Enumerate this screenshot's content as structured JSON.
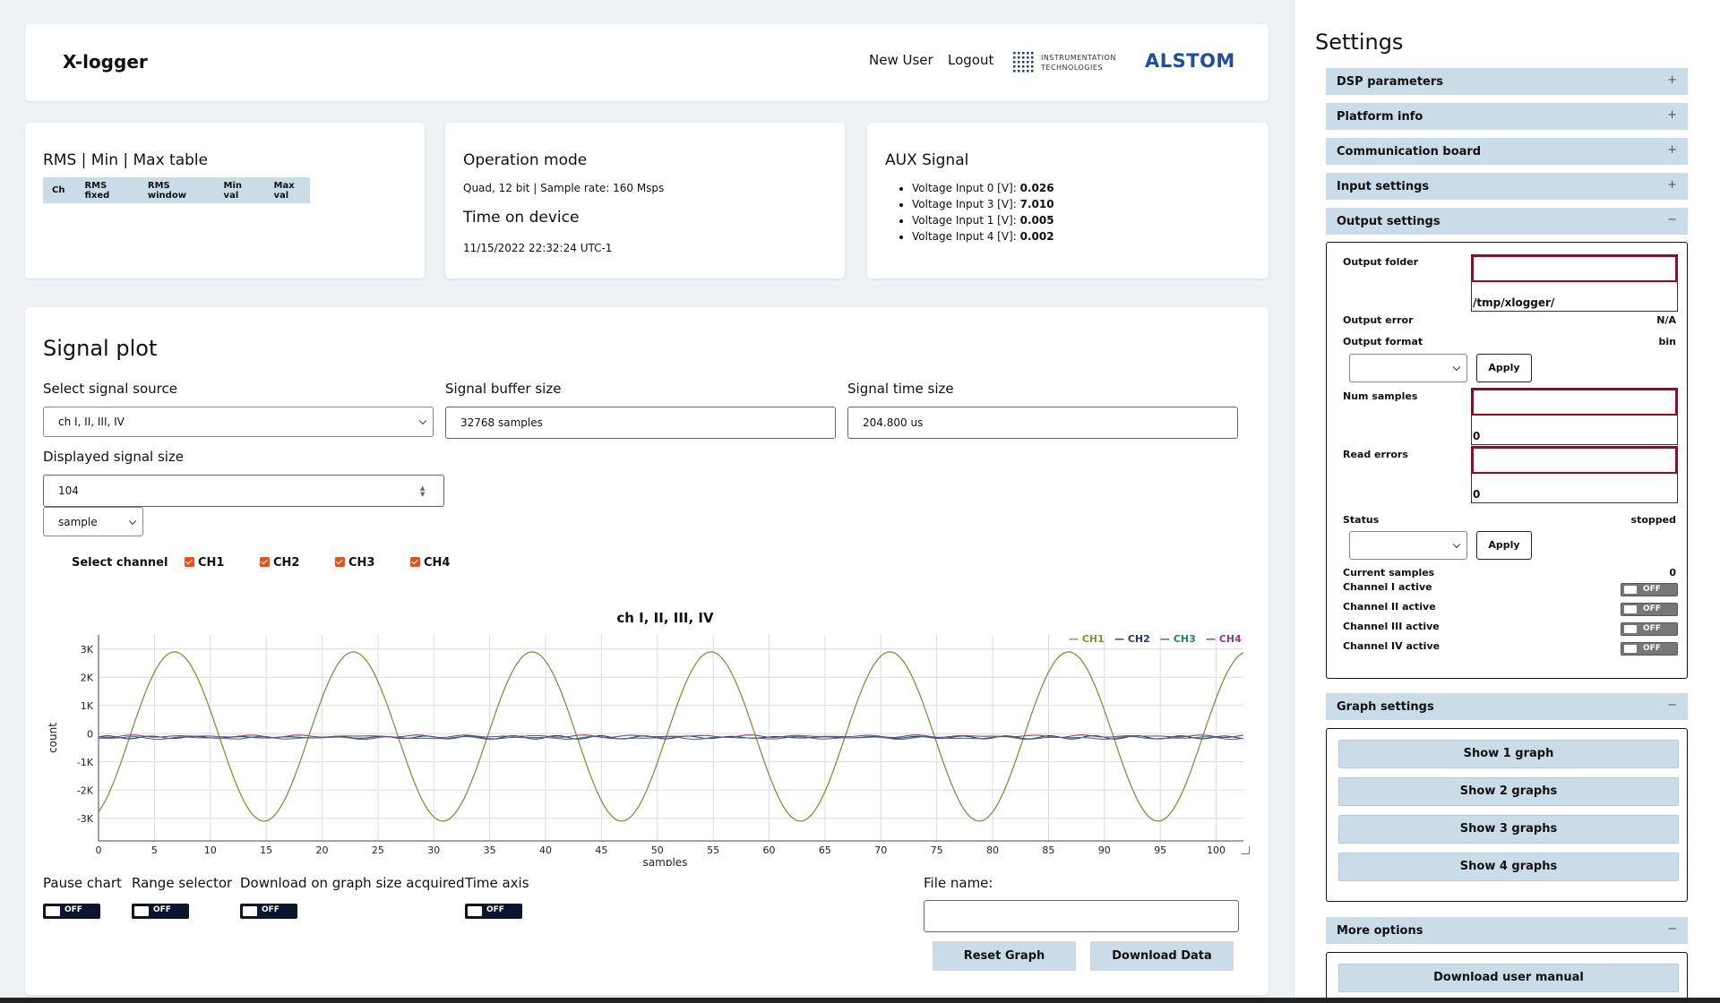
{
  "header": {
    "app_title": "X-logger",
    "new_user": "New User",
    "logout": "Logout",
    "instr_logo_line1": "INSTRUMENTATION",
    "instr_logo_line2": "TECHNOLOGIES",
    "alstom_logo": "ALSTOM"
  },
  "rms_card": {
    "title": "RMS | Min | Max table",
    "columns": [
      "Ch",
      "RMS fixed",
      "RMS window",
      "Min val",
      "Max val"
    ]
  },
  "operation_card": {
    "title": "Operation mode",
    "mode": "Quad, 12 bit | Sample rate: 160 Msps",
    "time_title": "Time on device",
    "time_value": "11/15/2022 22:32:24 UTC-1"
  },
  "aux_card": {
    "title": "AUX Signal",
    "items": [
      {
        "label": "Voltage Input 0 [V]:",
        "value": "0.026"
      },
      {
        "label": "Voltage Input 3 [V]:",
        "value": "7.010"
      },
      {
        "label": "Voltage Input 1 [V]:",
        "value": "0.005"
      },
      {
        "label": "Voltage Input 4 [V]:",
        "value": "0.002"
      }
    ]
  },
  "signal_plot": {
    "title": "Signal plot",
    "source_label": "Select signal source",
    "source_value": "ch I, II, III, IV",
    "buffer_label": "Signal buffer size",
    "buffer_value": "32768 samples",
    "time_label": "Signal time size",
    "time_value": "204.800 us",
    "displayed_label": "Displayed signal size",
    "displayed_value": "104",
    "unit_value": "sample",
    "select_channel_label": "Select channel",
    "channels": [
      "CH1",
      "CH2",
      "CH3",
      "CH4"
    ],
    "pause_label": "Pause chart",
    "range_label": "Range selector",
    "download_on_size_label": "Download on graph size acquired",
    "time_axis_label": "Time axis",
    "toggle_off": "OFF",
    "file_name_label": "File name:",
    "file_name_value": "",
    "reset_button": "Reset Graph",
    "download_button": "Download Data"
  },
  "chart_data": {
    "type": "line",
    "title": "ch I, II, III, IV",
    "xlabel": "samples",
    "ylabel": "count",
    "xlim": [
      0,
      103
    ],
    "ylim": [
      -3800,
      3500
    ],
    "x_ticks": [
      0,
      5,
      10,
      15,
      20,
      25,
      30,
      35,
      40,
      45,
      50,
      55,
      60,
      65,
      70,
      75,
      80,
      85,
      90,
      95,
      100
    ],
    "y_ticks": [
      {
        "value": 3000,
        "label": "3K"
      },
      {
        "value": 2000,
        "label": "2K"
      },
      {
        "value": 1000,
        "label": "1K"
      },
      {
        "value": 0,
        "label": "0"
      },
      {
        "value": -1000,
        "label": "-1K"
      },
      {
        "value": -2000,
        "label": "-2K"
      },
      {
        "value": -3000,
        "label": "-3K"
      }
    ],
    "grid": true,
    "legend_position": "top-right",
    "series": [
      {
        "name": "CH1",
        "color": "#8a8f3c",
        "amplitude": 3000,
        "period": 16,
        "phase_zero_x": 2.8,
        "offset": -100
      },
      {
        "name": "CH2",
        "color": "#1f3f6e",
        "amplitude": 40,
        "period": 4,
        "phase_zero_x": 0,
        "offset": -130
      },
      {
        "name": "CH3",
        "color": "#2e7e6e",
        "amplitude": 30,
        "period": 6,
        "phase_zero_x": 1,
        "offset": -150
      },
      {
        "name": "CH4",
        "color": "#8e3a8e",
        "amplitude": 25,
        "period": 5,
        "phase_zero_x": 2,
        "offset": -90
      }
    ]
  },
  "settings": {
    "title": "Settings",
    "sections": {
      "dsp": "DSP parameters",
      "platform": "Platform info",
      "comm": "Communication board",
      "input": "Input settings",
      "output": "Output settings",
      "graph": "Graph settings",
      "more": "More options"
    },
    "plus": "+",
    "minus": "−",
    "output": {
      "folder_label": "Output folder",
      "folder_value": "/tmp/xlogger/",
      "error_label": "Output error",
      "error_value": "N/A",
      "format_label": "Output format",
      "format_value": "bin",
      "apply": "Apply",
      "num_samples_label": "Num samples",
      "num_samples_value": "0",
      "read_errors_label": "Read errors",
      "read_errors_value": "0",
      "status_label": "Status",
      "status_value": "stopped",
      "current_samples_label": "Current samples",
      "current_samples_value": "0",
      "channel_labels": [
        "Channel I active",
        "Channel II active",
        "Channel III active",
        "Channel IV active"
      ]
    },
    "graph_buttons": [
      "Show 1 graph",
      "Show 2 graphs",
      "Show 3 graphs",
      "Show 4 graphs"
    ],
    "download_manual": "Download user manual"
  }
}
